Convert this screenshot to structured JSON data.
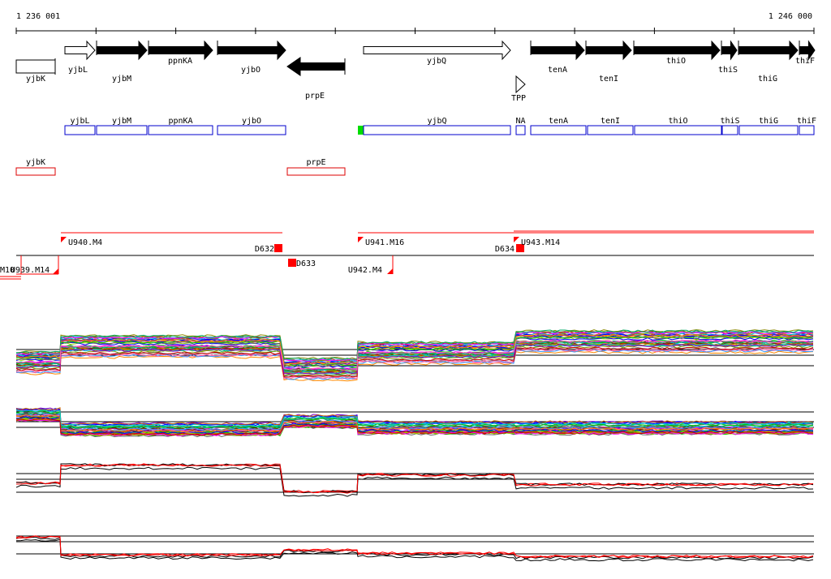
{
  "ruler": {
    "start_label": "1 236 001",
    "end_label": "1 246 000"
  },
  "genes": [
    {
      "name": "yjbK",
      "strand": "-",
      "style": "open"
    },
    {
      "name": "yjbL",
      "strand": "+",
      "style": "open"
    },
    {
      "name": "yjbM",
      "strand": "+",
      "style": "solid"
    },
    {
      "name": "ppnKA",
      "strand": "+",
      "style": "solid"
    },
    {
      "name": "yjbO",
      "strand": "+",
      "style": "solid"
    },
    {
      "name": "prpE",
      "strand": "-",
      "style": "solid"
    },
    {
      "name": "yjbQ",
      "strand": "+",
      "style": "open"
    },
    {
      "name": "TPP",
      "strand": "+",
      "style": "open"
    },
    {
      "name": "tenA",
      "strand": "+",
      "style": "solid"
    },
    {
      "name": "tenI",
      "strand": "+",
      "style": "solid"
    },
    {
      "name": "thiO",
      "strand": "+",
      "style": "solid"
    },
    {
      "name": "thiS",
      "strand": "+",
      "style": "solid"
    },
    {
      "name": "thiG",
      "strand": "+",
      "style": "solid"
    },
    {
      "name": "thiF",
      "strand": "+",
      "style": "solid"
    }
  ],
  "blue_features": [
    "yjbL",
    "yjbM",
    "ppnKA",
    "yjbO",
    "yjbQ",
    "NA",
    "tenA",
    "tenI",
    "thiO",
    "thiS",
    "thiG",
    "thiF"
  ],
  "red_features": [
    "yjbK",
    "prpE"
  ],
  "segments": [
    "M10",
    "U939.M14",
    "U940.M4",
    "D632",
    "D633",
    "U941.M16",
    "U942.M4",
    "D634",
    "U943.M14"
  ],
  "colors": {
    "gene_fill": "#000000",
    "blue_feature": "#0000cc",
    "red_feature": "#dd0000",
    "segment_red": "#ff0000",
    "start_marker": "#00dd00"
  }
}
